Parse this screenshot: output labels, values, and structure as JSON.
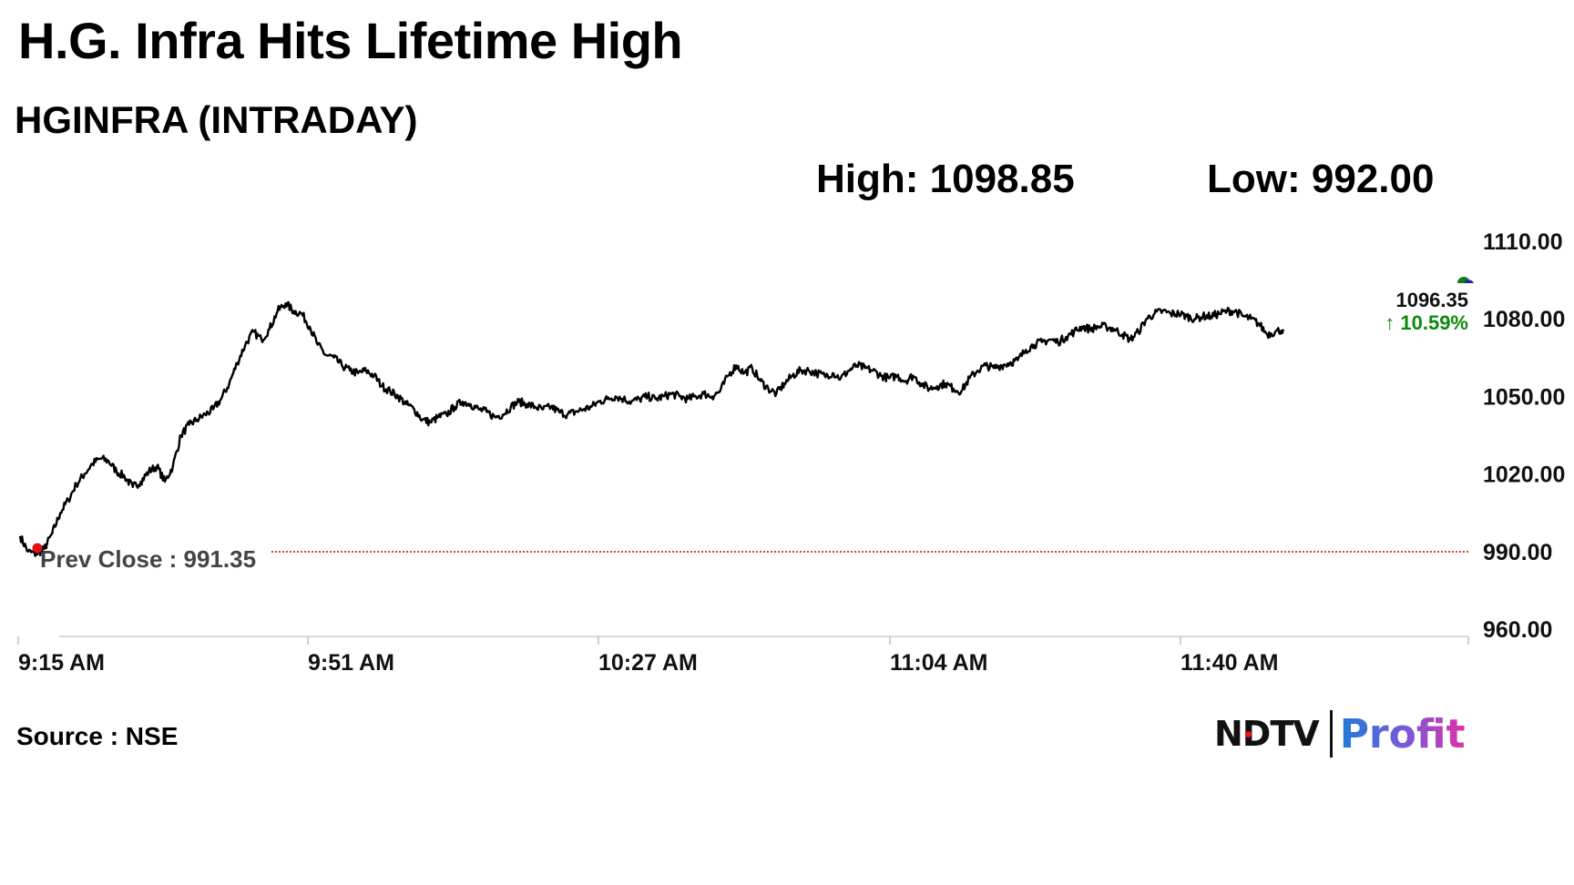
{
  "header": {
    "title": "H.G. Infra Hits Lifetime High",
    "subtitle": "HGINFRA (INTRADAY)",
    "high_label": "High: 1098.85",
    "low_label": "Low: 992.00"
  },
  "chart_data": {
    "type": "line",
    "x_ticks": [
      "9:15 AM",
      "9:51 AM",
      "10:27 AM",
      "11:04 AM",
      "11:40 AM"
    ],
    "y_ticks": [
      "1110.00",
      "1080.00",
      "1050.00",
      "1020.00",
      "990.00",
      "960.00"
    ],
    "ylim": [
      960,
      1110
    ],
    "xlim_minutes_after_open": [
      0,
      180
    ],
    "series": [
      {
        "points": [
          [
            0,
            996
          ],
          [
            1,
            990
          ],
          [
            2,
            989
          ],
          [
            3,
            991
          ],
          [
            4,
            997
          ],
          [
            5,
            1005
          ],
          [
            6,
            1010
          ],
          [
            7,
            1016
          ],
          [
            8,
            1020
          ],
          [
            9,
            1024
          ],
          [
            10,
            1026
          ],
          [
            11,
            1025
          ],
          [
            12,
            1021
          ],
          [
            13,
            1019
          ],
          [
            14,
            1015
          ],
          [
            15,
            1017
          ],
          [
            16,
            1021
          ],
          [
            17,
            1023
          ],
          [
            18,
            1017
          ],
          [
            19,
            1023
          ],
          [
            20,
            1035
          ],
          [
            21,
            1039
          ],
          [
            22,
            1041
          ],
          [
            23,
            1043
          ],
          [
            24,
            1045
          ],
          [
            25,
            1049
          ],
          [
            26,
            1055
          ],
          [
            27,
            1063
          ],
          [
            28,
            1070
          ],
          [
            29,
            1075
          ],
          [
            30,
            1072
          ],
          [
            31,
            1076
          ],
          [
            32,
            1083
          ],
          [
            33,
            1086
          ],
          [
            34,
            1083
          ],
          [
            35,
            1082
          ],
          [
            36,
            1077
          ],
          [
            37,
            1070
          ],
          [
            38,
            1066
          ],
          [
            39,
            1065
          ],
          [
            40,
            1062
          ],
          [
            41,
            1060
          ],
          [
            42,
            1059
          ],
          [
            43,
            1060
          ],
          [
            44,
            1058
          ],
          [
            45,
            1054
          ],
          [
            46,
            1052
          ],
          [
            47,
            1050
          ],
          [
            48,
            1047
          ],
          [
            49,
            1045
          ],
          [
            50,
            1041
          ],
          [
            51,
            1040
          ],
          [
            52,
            1042
          ],
          [
            53,
            1043
          ],
          [
            54,
            1046
          ],
          [
            55,
            1048
          ],
          [
            56,
            1047
          ],
          [
            57,
            1045
          ],
          [
            58,
            1044
          ],
          [
            59,
            1042
          ],
          [
            60,
            1043
          ],
          [
            61,
            1046
          ],
          [
            62,
            1048
          ],
          [
            63,
            1047
          ],
          [
            64,
            1046
          ],
          [
            65,
            1045
          ],
          [
            66,
            1046
          ],
          [
            67,
            1044
          ],
          [
            68,
            1043
          ],
          [
            69,
            1044
          ],
          [
            70,
            1045
          ],
          [
            71,
            1046
          ],
          [
            72,
            1048
          ],
          [
            73,
            1049
          ],
          [
            74,
            1050
          ],
          [
            75,
            1049
          ],
          [
            76,
            1048
          ],
          [
            77,
            1049
          ],
          [
            78,
            1050
          ],
          [
            79,
            1049
          ],
          [
            80,
            1050
          ],
          [
            81,
            1051
          ],
          [
            82,
            1050
          ],
          [
            83,
            1049
          ],
          [
            84,
            1050
          ],
          [
            85,
            1051
          ],
          [
            86,
            1050
          ],
          [
            87,
            1052
          ],
          [
            88,
            1058
          ],
          [
            89,
            1062
          ],
          [
            90,
            1059
          ],
          [
            91,
            1061
          ],
          [
            92,
            1056
          ],
          [
            93,
            1053
          ],
          [
            94,
            1051
          ],
          [
            95,
            1055
          ],
          [
            96,
            1058
          ],
          [
            97,
            1060
          ],
          [
            98,
            1060
          ],
          [
            99,
            1059
          ],
          [
            100,
            1058
          ],
          [
            101,
            1059
          ],
          [
            102,
            1057
          ],
          [
            103,
            1060
          ],
          [
            104,
            1062
          ],
          [
            105,
            1061
          ],
          [
            106,
            1060
          ],
          [
            107,
            1058
          ],
          [
            108,
            1057
          ],
          [
            109,
            1058
          ],
          [
            110,
            1056
          ],
          [
            111,
            1058
          ],
          [
            112,
            1055
          ],
          [
            113,
            1053
          ],
          [
            114,
            1054
          ],
          [
            115,
            1055
          ],
          [
            116,
            1053
          ],
          [
            117,
            1052
          ],
          [
            118,
            1057
          ],
          [
            119,
            1060
          ],
          [
            120,
            1062
          ],
          [
            121,
            1061
          ],
          [
            122,
            1062
          ],
          [
            123,
            1063
          ],
          [
            124,
            1064
          ],
          [
            125,
            1068
          ],
          [
            126,
            1070
          ],
          [
            127,
            1071
          ],
          [
            128,
            1072
          ],
          [
            129,
            1071
          ],
          [
            130,
            1073
          ],
          [
            131,
            1075
          ],
          [
            132,
            1077
          ],
          [
            133,
            1076
          ],
          [
            134,
            1077
          ],
          [
            135,
            1077
          ],
          [
            136,
            1076
          ],
          [
            137,
            1074
          ],
          [
            138,
            1072
          ],
          [
            139,
            1075
          ],
          [
            140,
            1080
          ],
          [
            141,
            1082
          ],
          [
            142,
            1083
          ],
          [
            143,
            1082
          ],
          [
            144,
            1082
          ],
          [
            145,
            1081
          ],
          [
            146,
            1080
          ],
          [
            147,
            1081
          ],
          [
            148,
            1081
          ],
          [
            149,
            1082
          ],
          [
            150,
            1083
          ],
          [
            151,
            1083
          ],
          [
            152,
            1081
          ],
          [
            153,
            1080
          ],
          [
            154,
            1078
          ],
          [
            155,
            1074
          ],
          [
            156,
            1075
          ],
          [
            157,
            1076
          ]
        ],
        "color": "#000000"
      }
    ],
    "prev_close": {
      "value": 991.35,
      "label": "Prev Close : 991.35",
      "color": "#cc0000"
    },
    "last": {
      "price": "1096.35",
      "change": "↑ 10.59%",
      "change_color": "#0b8a0b"
    },
    "grid": false
  },
  "footer": {
    "source": "Source : NSE",
    "logo_left": "NDTV",
    "logo_right": "Profit"
  }
}
